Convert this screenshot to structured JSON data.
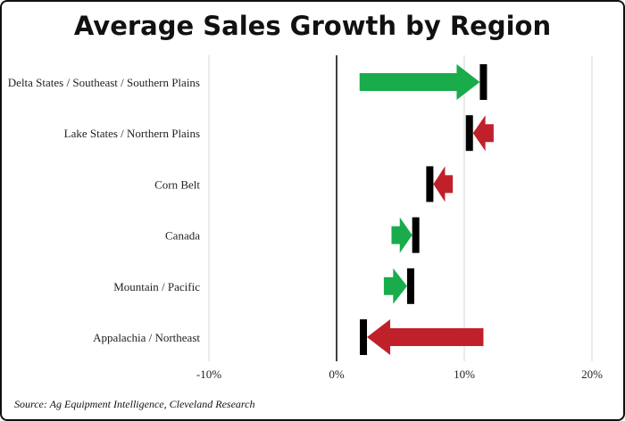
{
  "chart_data": {
    "type": "arrow-range",
    "title": "Average Sales Growth by Region",
    "source": "Source: Ag Equipment Intelligence, Cleveland Research",
    "xlim": [
      -10,
      20
    ],
    "xticks": [
      -10,
      0,
      10,
      20
    ],
    "xtick_labels": [
      "-10%",
      "0%",
      "10%",
      "20%"
    ],
    "grid": true,
    "categories": [
      "Delta States / Southeast / Southern Plains",
      "Lake States / Northern Plains",
      "Corn Belt",
      "Canada",
      "Mountain / Pacific",
      "Appalachia / Northeast"
    ],
    "from": [
      1.8,
      12.3,
      9.1,
      4.3,
      3.7,
      11.5
    ],
    "to": [
      11.5,
      10.4,
      7.3,
      6.2,
      5.8,
      2.1
    ],
    "colors": {
      "increase": "#1aab4b",
      "decrease": "#c0202a",
      "marker": "#000000"
    }
  }
}
